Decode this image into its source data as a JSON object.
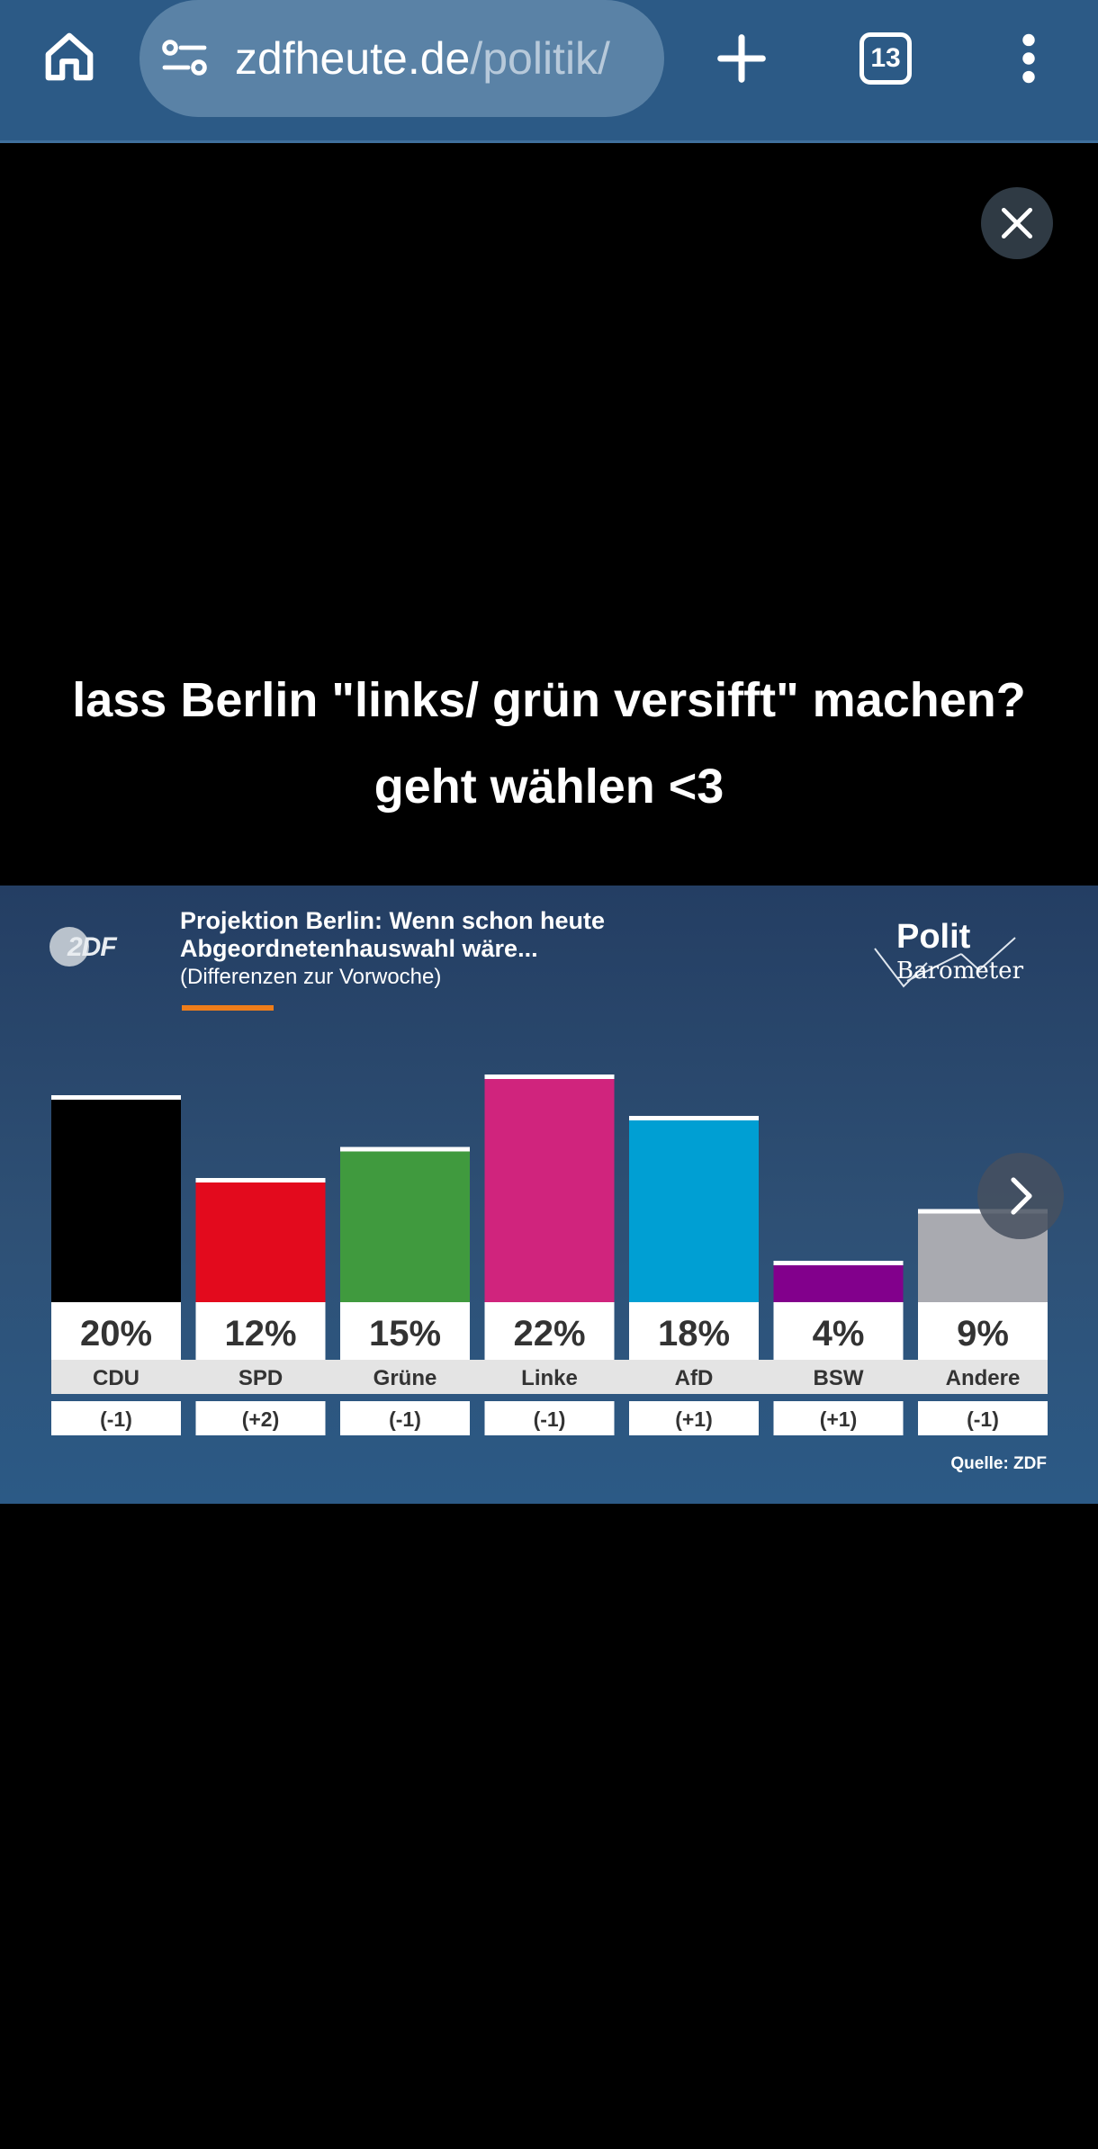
{
  "browser": {
    "url_domain": "zdfheute.de",
    "url_path": "/politik/",
    "tab_count": "13",
    "icons": {
      "home": "home-icon",
      "site_settings": "site-settings-icon",
      "new_tab": "plus-icon",
      "tabs": "tab-switcher-icon",
      "menu": "more-vert-icon"
    }
  },
  "overlay": {
    "close_icon": "close-icon",
    "caption_line1": "lass Berlin \"links/ grün versifft\" machen?",
    "caption_line2": "geht wählen <3"
  },
  "panel": {
    "logo_text": "2DF",
    "title_line1": "Projektion Berlin: Wenn schon heute",
    "title_line2": "Abgeordnetenhauswahl wäre...",
    "subtitle": "(Differenzen zur Vorwoche)",
    "brand_line1": "Polit",
    "brand_line2": "Barometer",
    "source": "Quelle: ZDF",
    "accent_color": "#ef7d1a",
    "next_icon": "chevron-right-icon"
  },
  "chart_data": {
    "type": "bar",
    "categories": [
      "CDU",
      "SPD",
      "Grüne",
      "Linke",
      "AfD",
      "BSW",
      "Andere"
    ],
    "values": [
      20,
      12,
      15,
      22,
      18,
      4,
      9
    ],
    "value_labels": [
      "20%",
      "12%",
      "15%",
      "22%",
      "18%",
      "4%",
      "9%"
    ],
    "changes": [
      "(-1)",
      "(+2)",
      "(-1)",
      "(-1)",
      "(+1)",
      "(+1)",
      "(-1)"
    ],
    "colors": [
      "#000000",
      "#e30a1d",
      "#409a3e",
      "#d0247d",
      "#009fd3",
      "#82008c",
      "#a9aab0"
    ],
    "ylim": [
      0,
      22
    ]
  }
}
